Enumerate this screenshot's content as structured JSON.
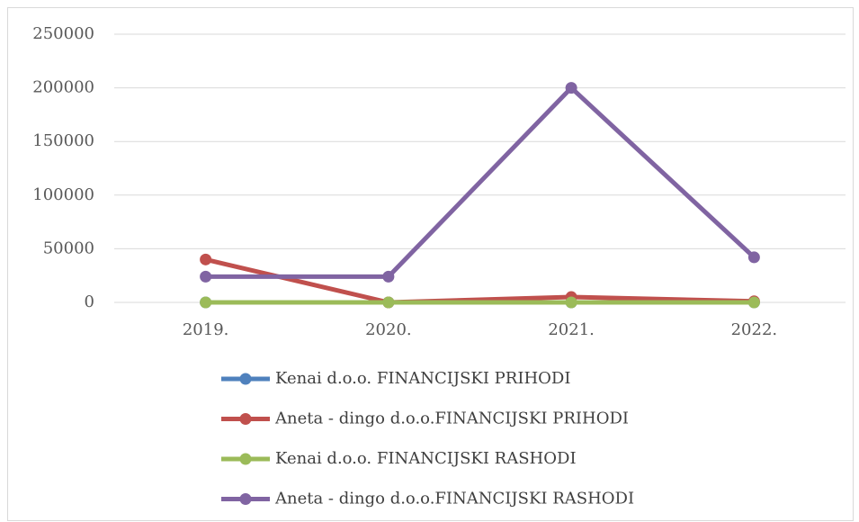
{
  "chart_data": {
    "type": "line",
    "categories": [
      "2019.",
      "2020.",
      "2021.",
      "2022."
    ],
    "series": [
      {
        "name": "Kenai d.o.o. FINANCIJSKI PRIHODI",
        "color": "#4f81bd",
        "values": [
          0,
          0,
          0,
          0
        ]
      },
      {
        "name": "Aneta - dingo d.o.o.FINANCIJSKI PRIHODI",
        "color": "#c0504d",
        "values": [
          40000,
          0,
          5000,
          1000
        ]
      },
      {
        "name": "Kenai d.o.o. FINANCIJSKI RASHODI",
        "color": "#9bbb59",
        "values": [
          0,
          0,
          0,
          0
        ]
      },
      {
        "name": "Aneta - dingo d.o.o.FINANCIJSKI RASHODI",
        "color": "#8064a2",
        "values": [
          24000,
          24000,
          200000,
          42000
        ]
      }
    ],
    "ylim": [
      0,
      250000
    ],
    "yticks": [
      0,
      50000,
      100000,
      150000,
      200000,
      250000
    ],
    "grid": true,
    "legend": "bottom"
  }
}
